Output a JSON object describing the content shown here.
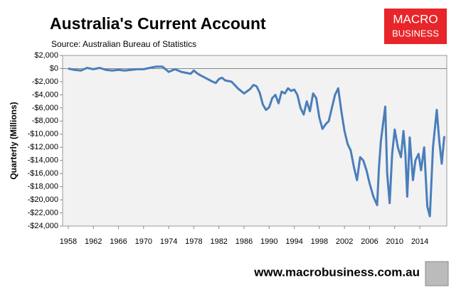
{
  "chart_data": {
    "type": "line",
    "title": "Australia's Current Account",
    "subtitle": "Source: Australian Bureau of Statistics",
    "y_label": "Quarterly (Millions)",
    "logo": [
      "MACRO",
      "BUSINESS"
    ],
    "footer": "www.macrobusiness.com.au",
    "x": [
      1958,
      1959,
      1960,
      1961,
      1962,
      1963,
      1964,
      1965,
      1966,
      1967,
      1968,
      1969,
      1970,
      1971,
      1972,
      1973,
      1974,
      1975,
      1976,
      1977,
      1977.5,
      1978,
      1978.5,
      1979,
      1980,
      1981,
      1981.5,
      1982,
      1982.5,
      1983,
      1984,
      1985,
      1985.5,
      1986,
      1987,
      1987.5,
      1988,
      1988.5,
      1989,
      1989.5,
      1990,
      1990.5,
      1991,
      1991.5,
      1992,
      1992.5,
      1993,
      1993.5,
      1994,
      1994.5,
      1995,
      1995.5,
      1996,
      1996.5,
      1997,
      1997.5,
      1998,
      1998.5,
      1999,
      1999.5,
      2000,
      2000.5,
      2001,
      2001.5,
      2002,
      2002.5,
      2003,
      2003.5,
      2004,
      2004.5,
      2005,
      2005.5,
      2006,
      2006.6,
      2007.2,
      2007.5,
      2007.8,
      2008.5,
      2008.8,
      2009.2,
      2009.6,
      2010,
      2010.5,
      2011,
      2011.4,
      2011.7,
      2012,
      2012.4,
      2012.9,
      2013.3,
      2013.8,
      2014.2,
      2014.7,
      2015.2,
      2015.6,
      2016.1,
      2016.7,
      2017.1,
      2017.5,
      2017.9
    ],
    "series": [
      {
        "name": "Current account",
        "color": "#4a7ebb",
        "values": [
          0,
          -200,
          -300,
          100,
          -100,
          100,
          -200,
          -300,
          -200,
          -300,
          -200,
          -100,
          -100,
          100,
          300,
          300,
          -500,
          -100,
          -500,
          -700,
          -800,
          -300,
          -700,
          -1000,
          -1500,
          -2000,
          -2200,
          -1600,
          -1400,
          -1800,
          -2000,
          -3000,
          -3400,
          -3800,
          -3100,
          -2500,
          -2700,
          -3700,
          -5500,
          -6300,
          -5900,
          -4500,
          -4000,
          -5300,
          -3500,
          -3800,
          -3000,
          -3400,
          -3200,
          -4000,
          -6000,
          -7000,
          -5000,
          -6500,
          -3800,
          -4500,
          -7500,
          -9200,
          -8500,
          -8000,
          -6000,
          -4000,
          -3000,
          -6500,
          -9500,
          -11500,
          -12500,
          -15000,
          -17000,
          -13500,
          -14000,
          -15500,
          -17500,
          -19500,
          -20800,
          -15000,
          -11000,
          -5800,
          -16000,
          -20500,
          -13000,
          -9300,
          -12000,
          -13500,
          -9500,
          -13000,
          -19500,
          -10500,
          -17000,
          -14000,
          -13000,
          -15500,
          -12000,
          -21000,
          -22500,
          -12000,
          -6300,
          -11000,
          -14500,
          -10300
        ]
      }
    ],
    "xlim": [
      1957.1,
      2018.3
    ],
    "xticks": [
      1958,
      1962,
      1966,
      1970,
      1974,
      1978,
      1982,
      1986,
      1990,
      1994,
      1998,
      2002,
      2006,
      2010,
      2014
    ],
    "ylim": [
      -24000,
      2000
    ],
    "yticks": [
      {
        "value": 2000,
        "label": "$2,000"
      },
      {
        "value": 0,
        "label": "$0"
      },
      {
        "value": -2000,
        "label": "-$2,000"
      },
      {
        "value": -4000,
        "label": "-$4,000"
      },
      {
        "value": -6000,
        "label": "-$6,000"
      },
      {
        "value": -8000,
        "label": "-$8,000"
      },
      {
        "value": -10000,
        "label": "-$10,000"
      },
      {
        "value": -12000,
        "label": "-$12,000"
      },
      {
        "value": -14000,
        "label": "-$14,000"
      },
      {
        "value": -16000,
        "label": "-$16,000"
      },
      {
        "value": -18000,
        "label": "-$18,000"
      },
      {
        "value": -20000,
        "label": "-$20,000"
      },
      {
        "value": -22000,
        "label": "-$22,000"
      },
      {
        "value": -24000,
        "label": "-$24,000"
      }
    ],
    "grid": false
  }
}
